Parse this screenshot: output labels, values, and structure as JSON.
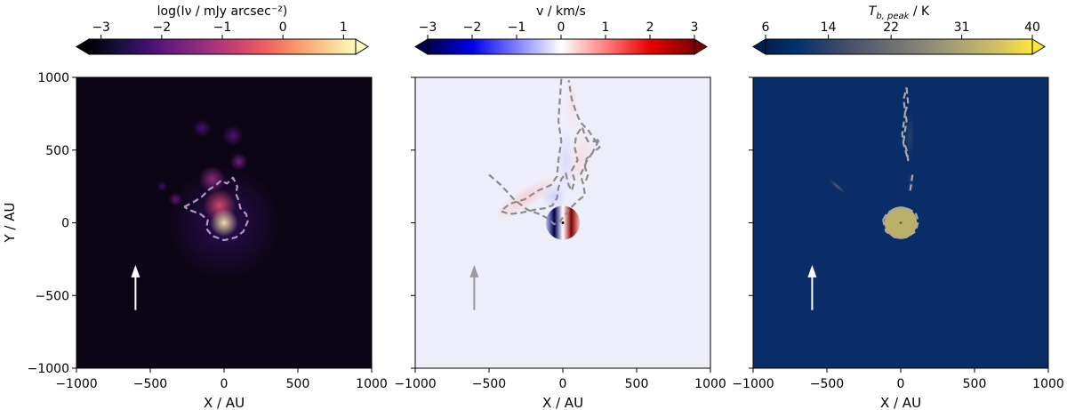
{
  "chart_data": [
    {
      "type": "heatmap",
      "panel": "left",
      "colorbar": {
        "label": "log(Iν / mJy arcsec⁻²)",
        "ticks": [
          -3,
          -2,
          -1,
          0,
          1
        ],
        "tick_labels": [
          "−3",
          "−2",
          "−1",
          "0",
          "1"
        ],
        "range": [
          -3.2,
          1.2
        ],
        "extend": "both",
        "colormap": "magma",
        "colors": [
          "#000004",
          "#180f3d",
          "#440f76",
          "#721f81",
          "#9e2f7f",
          "#cd4071",
          "#f1605d",
          "#fd9668",
          "#feca8d",
          "#fcfdbf"
        ]
      },
      "xlabel": "X / AU",
      "ylabel": "Y / AU",
      "xlim": [
        -1000,
        1000
      ],
      "ylim": [
        -1000,
        1000
      ],
      "xticks": [
        -1000,
        -500,
        0,
        500,
        1000
      ],
      "xtick_labels": [
        "−1000",
        "−500",
        "0",
        "500",
        "1000"
      ],
      "yticks": [
        -1000,
        -500,
        0,
        500,
        1000
      ],
      "ytick_labels": [
        "−1000",
        "−500",
        "0",
        "500",
        "1000"
      ],
      "background": "#0c0516",
      "arrow": {
        "x": -600,
        "y_from": -600,
        "y_to": -290,
        "color": "#ffffff"
      },
      "contour_color": "#b294c7",
      "contours": [
        [
          [
            -270,
            110
          ],
          [
            -210,
            140
          ],
          [
            -150,
            180
          ],
          [
            -100,
            230
          ],
          [
            -60,
            255
          ],
          [
            -20,
            290
          ],
          [
            20,
            270
          ],
          [
            60,
            310
          ],
          [
            90,
            250
          ],
          [
            80,
            200
          ],
          [
            100,
            150
          ],
          [
            110,
            100
          ],
          [
            150,
            60
          ],
          [
            160,
            10
          ],
          [
            130,
            -60
          ],
          [
            80,
            -100
          ],
          [
            0,
            -120
          ],
          [
            -80,
            -90
          ],
          [
            -120,
            -40
          ],
          [
            -110,
            20
          ],
          [
            -160,
            60
          ],
          [
            -240,
            90
          ],
          [
            -270,
            110
          ]
        ]
      ],
      "sources": [
        {
          "x": 0,
          "y": 0,
          "size": 95,
          "peak": 1.0
        },
        {
          "x": -30,
          "y": 120,
          "size": 110,
          "peak": -0.6
        },
        {
          "x": -80,
          "y": 300,
          "size": 90,
          "peak": -1.4
        },
        {
          "x": 100,
          "y": 420,
          "size": 60,
          "peak": -1.7
        },
        {
          "x": 60,
          "y": 600,
          "size": 70,
          "peak": -2.1
        },
        {
          "x": -150,
          "y": 650,
          "size": 60,
          "peak": -2.2
        },
        {
          "x": -330,
          "y": 160,
          "size": 45,
          "peak": -1.9
        },
        {
          "x": -420,
          "y": 250,
          "size": 35,
          "peak": -2.3
        },
        {
          "x": 0,
          "y": 0,
          "size": 380,
          "peak": -2.5
        }
      ]
    },
    {
      "type": "heatmap",
      "panel": "middle",
      "colorbar": {
        "label": "v / km/s",
        "ticks": [
          -3,
          -2,
          -1,
          0,
          1,
          2,
          3
        ],
        "tick_labels": [
          "−3",
          "−2",
          "−1",
          "0",
          "1",
          "2",
          "3"
        ],
        "range": [
          -3,
          3
        ],
        "extend": "both",
        "colormap": "seismic",
        "colors": [
          "#00004c",
          "#0000e8",
          "#7f7fff",
          "#ffffff",
          "#ff7f7f",
          "#e80000",
          "#7f0000"
        ]
      },
      "xlabel": "X / AU",
      "xlim": [
        -1000,
        1000
      ],
      "ylim": [
        -1000,
        1000
      ],
      "xticks": [
        -1000,
        -500,
        0,
        500,
        1000
      ],
      "xtick_labels": [
        "−1000",
        "−500",
        "0",
        "500",
        "1000"
      ],
      "yticks": [
        -1000,
        -500,
        0,
        500,
        1000
      ],
      "background": "#eeeefa",
      "arrow": {
        "x": -600,
        "y_from": -600,
        "y_to": -290,
        "color": "#9a9a9a"
      },
      "contour_color": "#8c8c8c",
      "contours": [
        [
          [
            -500,
            330
          ],
          [
            -420,
            260
          ],
          [
            -330,
            160
          ],
          [
            -240,
            90
          ],
          [
            -160,
            60
          ],
          [
            -100,
            30
          ],
          [
            -60,
            -10
          ],
          [
            -20,
            10
          ],
          [
            20,
            60
          ],
          [
            60,
            110
          ],
          [
            100,
            150
          ],
          [
            150,
            190
          ],
          [
            140,
            260
          ],
          [
            120,
            330
          ],
          [
            160,
            420
          ],
          [
            200,
            480
          ],
          [
            250,
            520
          ],
          [
            210,
            580
          ],
          [
            170,
            640
          ],
          [
            120,
            690
          ],
          [
            90,
            760
          ],
          [
            60,
            850
          ],
          [
            40,
            980
          ]
        ],
        [
          [
            -10,
            990
          ],
          [
            -20,
            850
          ],
          [
            -30,
            700
          ],
          [
            -10,
            560
          ],
          [
            -30,
            430
          ],
          [
            -40,
            320
          ],
          [
            -80,
            260
          ],
          [
            -170,
            220
          ],
          [
            -260,
            160
          ],
          [
            -360,
            130
          ],
          [
            -420,
            80
          ],
          [
            -360,
            60
          ],
          [
            -280,
            70
          ],
          [
            -190,
            90
          ],
          [
            -120,
            100
          ],
          [
            -70,
            120
          ],
          [
            -40,
            170
          ],
          [
            -30,
            240
          ],
          [
            -10,
            300
          ],
          [
            20,
            340
          ],
          [
            40,
            260
          ],
          [
            60,
            220
          ],
          [
            80,
            290
          ],
          [
            60,
            360
          ],
          [
            100,
            430
          ],
          [
            80,
            520
          ],
          [
            90,
            600
          ],
          [
            130,
            660
          ],
          [
            150,
            600
          ],
          [
            170,
            560
          ],
          [
            220,
            560
          ],
          [
            250,
            580
          ],
          [
            200,
            480
          ],
          [
            160,
            440
          ],
          [
            150,
            380
          ],
          [
            170,
            330
          ],
          [
            150,
            270
          ]
        ]
      ],
      "disk": {
        "x": 0,
        "y": 0,
        "radius": 115,
        "vmax": 3
      },
      "flows": [
        {
          "x": -250,
          "y": 170,
          "sx": 260,
          "sy": 70,
          "angle": -32,
          "v": 0.55
        },
        {
          "x": -60,
          "y": 180,
          "sx": 90,
          "sy": 90,
          "angle": 0,
          "v": -0.5
        },
        {
          "x": 20,
          "y": 420,
          "sx": 60,
          "sy": 220,
          "angle": 0,
          "v": -0.4
        },
        {
          "x": 120,
          "y": 450,
          "sx": 80,
          "sy": 200,
          "angle": 10,
          "v": 0.35
        },
        {
          "x": 60,
          "y": 820,
          "sx": 50,
          "sy": 200,
          "angle": 0,
          "v": 0.3
        }
      ]
    },
    {
      "type": "heatmap",
      "panel": "right",
      "colorbar": {
        "label": "T_b, peak / K",
        "ticks": [
          6,
          14,
          22,
          31,
          40
        ],
        "tick_labels": [
          "6",
          "14",
          "22",
          "31",
          "40"
        ],
        "range": [
          6,
          40
        ],
        "extend": "both",
        "colormap": "cividis",
        "colors": [
          "#00204c",
          "#00306f",
          "#2a406c",
          "#4b546c",
          "#666970",
          "#807f77",
          "#9b9677",
          "#b8ad6f",
          "#d8c560",
          "#fee838"
        ]
      },
      "xlabel": "X / AU",
      "xlim": [
        -1000,
        1000
      ],
      "ylim": [
        -1000,
        1000
      ],
      "xticks": [
        -1000,
        -500,
        0,
        500,
        1000
      ],
      "xtick_labels": [
        "−1000",
        "−500",
        "0",
        "500",
        "1000"
      ],
      "yticks": [
        -1000,
        -500,
        0,
        500,
        1000
      ],
      "background": "#0b2d67",
      "arrow": {
        "x": -600,
        "y_from": -600,
        "y_to": -290,
        "color": "#ffffff"
      },
      "contour_color": "#a8a8a8",
      "contours": [
        [
          [
            -120,
            20
          ],
          [
            -90,
            70
          ],
          [
            -30,
            100
          ],
          [
            40,
            100
          ],
          [
            100,
            70
          ],
          [
            120,
            10
          ],
          [
            100,
            -60
          ],
          [
            40,
            -100
          ],
          [
            -40,
            -100
          ],
          [
            -100,
            -60
          ],
          [
            -120,
            20
          ]
        ],
        [
          [
            40,
            930
          ],
          [
            50,
            820
          ],
          [
            30,
            760
          ],
          [
            40,
            700
          ],
          [
            30,
            640
          ],
          [
            20,
            560
          ],
          [
            40,
            500
          ],
          [
            50,
            430
          ],
          [
            40,
            470
          ],
          [
            20,
            540
          ],
          [
            10,
            610
          ],
          [
            20,
            680
          ],
          [
            30,
            760
          ],
          [
            20,
            850
          ],
          [
            40,
            930
          ]
        ],
        [
          [
            80,
            330
          ],
          [
            70,
            260
          ],
          [
            60,
            200
          ]
        ]
      ],
      "disk": {
        "x": 0,
        "y": 0,
        "radius": 110,
        "temperature": 34
      },
      "features": [
        {
          "x": -430,
          "y": 250,
          "sx": 70,
          "sy": 14,
          "angle": 40,
          "temperature": 20
        },
        {
          "x": 60,
          "y": 600,
          "sx": 30,
          "sy": 160,
          "angle": 0,
          "temperature": 14
        },
        {
          "x": 70,
          "y": 280,
          "sx": 18,
          "sy": 60,
          "angle": -10,
          "temperature": 13
        }
      ]
    }
  ]
}
